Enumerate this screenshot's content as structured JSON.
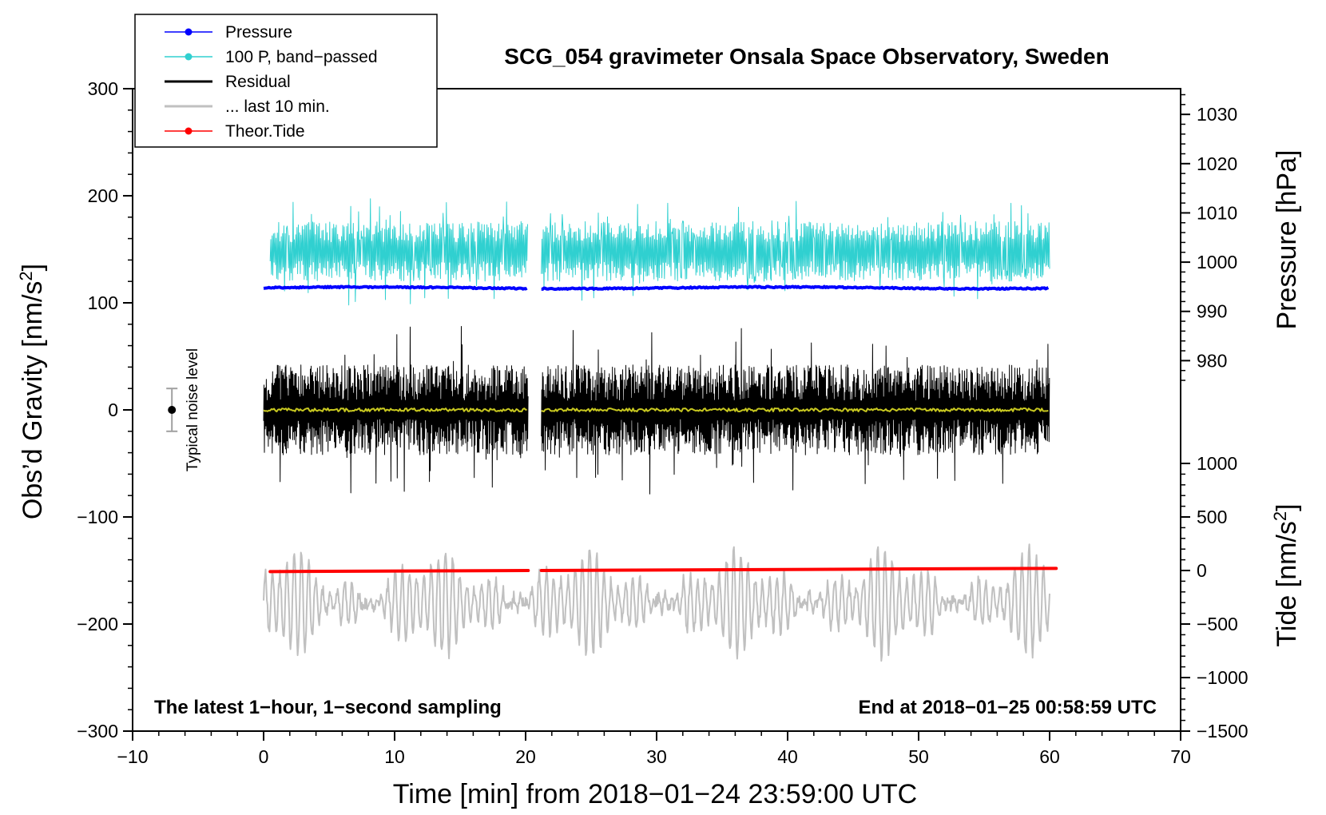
{
  "chart_data": {
    "type": "line",
    "title": "SCG_054 gravimeter Onsala Space Observatory, Sweden",
    "xlabel": "Time [min] from 2018−01−24 23:59:00 UTC",
    "ylabel_prefix": "Obs’d Gravity [nm/s",
    "ylabel_sup": "2",
    "ylabel_suffix": "]",
    "y2label": "Pressure [hPa]",
    "y3label_prefix": "Tide [nm/s",
    "y3label_sup": "2",
    "y3label_suffix": "]",
    "xlim": [
      -10,
      70
    ],
    "ylim": [
      -300,
      300
    ],
    "xticks": [
      -10,
      0,
      10,
      20,
      30,
      40,
      50,
      60,
      70
    ],
    "xtick_labels": [
      "−10",
      "0",
      "10",
      "20",
      "30",
      "40",
      "50",
      "60",
      "70"
    ],
    "yticks": [
      -300,
      -200,
      -100,
      0,
      100,
      200,
      300
    ],
    "ytick_labels": [
      "−300",
      "−200",
      "−100",
      "0",
      "100",
      "200",
      "300"
    ],
    "pressure_axis": {
      "ticks": [
        980,
        990,
        1000,
        1010,
        1020,
        1030
      ],
      "tick_labels": [
        "980",
        "990",
        "1000",
        "1010",
        "1020",
        "1030"
      ],
      "gravity_at_1000": 138,
      "gravity_per_hpa": 4.6
    },
    "tide_axis": {
      "ticks": [
        -1500,
        -1000,
        -500,
        0,
        500,
        1000
      ],
      "tick_labels": [
        "−1500",
        "−1000",
        "−500",
        "0",
        "500",
        "1000"
      ],
      "gravity_at_0": -150,
      "gravity_per_unit": 0.1
    },
    "gap": [
      20.2,
      21.2
    ],
    "series": [
      {
        "name": "Pressure",
        "color": "#0000ff",
        "x_range": [
          0,
          60
        ],
        "level": 114,
        "amp": 1.2,
        "kind": "smooth"
      },
      {
        "name": "100 P, band−passed",
        "color": "#30d0d0",
        "x_range": [
          0.5,
          60
        ],
        "level": 148,
        "amp": 28,
        "kind": "noise"
      },
      {
        "name": "Residual",
        "color": "#000000",
        "x_range": [
          0,
          60
        ],
        "level": 0,
        "amp": 42,
        "kind": "noise"
      },
      {
        "name": "... last 10 min.",
        "color": "#c0c0c0",
        "x_range": [
          0,
          60
        ],
        "level": -180,
        "amp": 48,
        "kind": "oscillation"
      },
      {
        "name": "Theor.Tide",
        "color": "#ff0000",
        "x_range": [
          0.5,
          60.5
        ],
        "level_start": -151,
        "level_end": -148,
        "kind": "trend"
      },
      {
        "name": "Residual smoothed",
        "color": "#c8c820",
        "x_range": [
          0,
          60
        ],
        "level": 0,
        "amp": 1.5,
        "kind": "smooth"
      }
    ],
    "legend": [
      {
        "label": "Pressure",
        "color": "#0000ff",
        "marker": true
      },
      {
        "label": "100 P, band−passed",
        "color": "#30d0d0",
        "marker": true
      },
      {
        "label": "Residual",
        "color": "#000000",
        "marker": false
      },
      {
        "label": "... last 10 min.",
        "color": "#c0c0c0",
        "marker": false
      },
      {
        "label": "Theor.Tide",
        "color": "#ff0000",
        "marker": true
      }
    ],
    "legend_position": "top-left",
    "noise_level": {
      "label": "Typical noise level",
      "x": -7,
      "center": 0,
      "half_range": 20
    },
    "annotation_left": "The latest 1−hour, 1−second sampling",
    "annotation_right": "End at 2018−01−25 00:58:59 UTC"
  }
}
